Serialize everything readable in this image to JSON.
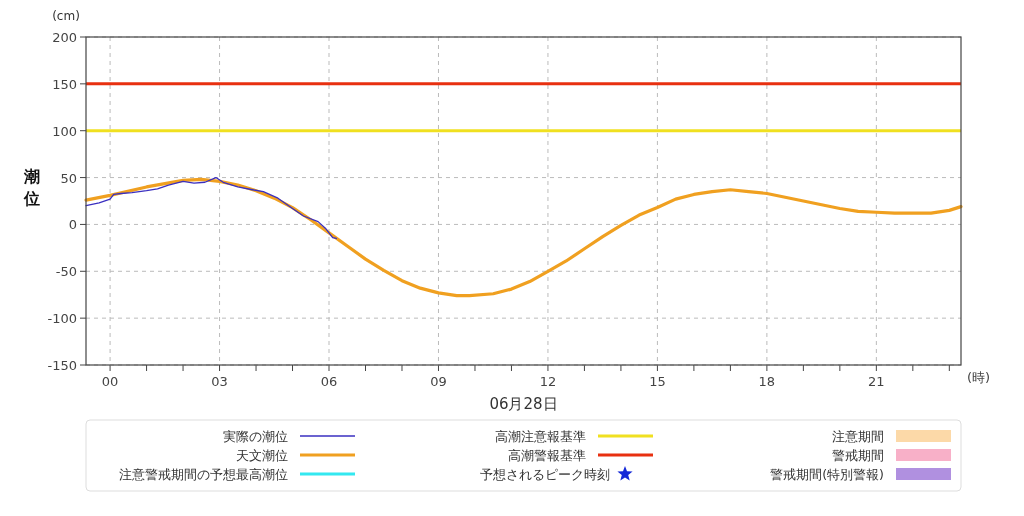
{
  "chart_data": {
    "type": "line",
    "ylabel": "潮位",
    "xlabel": "(時)",
    "annotations": [
      "(cm)",
      "06月28日"
    ],
    "xlim": [
      -0.66,
      23.32
    ],
    "ylim": [
      -150,
      200
    ],
    "xticks": [
      {
        "value": 0,
        "label": "00"
      },
      {
        "value": 1,
        "label": null
      },
      {
        "value": 2,
        "label": null
      },
      {
        "value": 3,
        "label": "03"
      },
      {
        "value": 4,
        "label": null
      },
      {
        "value": 5,
        "label": null
      },
      {
        "value": 6,
        "label": "06"
      },
      {
        "value": 7,
        "label": null
      },
      {
        "value": 8,
        "label": null
      },
      {
        "value": 9,
        "label": "09"
      },
      {
        "value": 10,
        "label": null
      },
      {
        "value": 11,
        "label": null
      },
      {
        "value": 12,
        "label": "12"
      },
      {
        "value": 13,
        "label": null
      },
      {
        "value": 14,
        "label": null
      },
      {
        "value": 15,
        "label": "15"
      },
      {
        "value": 16,
        "label": null
      },
      {
        "value": 17,
        "label": null
      },
      {
        "value": 18,
        "label": "18"
      },
      {
        "value": 19,
        "label": null
      },
      {
        "value": 20,
        "label": null
      },
      {
        "value": 21,
        "label": "21"
      },
      {
        "value": 22,
        "label": null
      },
      {
        "value": 23,
        "label": null
      }
    ],
    "yticks": [
      -150,
      -100,
      -50,
      0,
      50,
      100,
      150,
      200
    ],
    "grid": true,
    "legend": "bottom",
    "series": [
      {
        "name": "実際の潮位",
        "color": "#3a2fc0",
        "x": [
          -0.66,
          -0.3,
          0,
          0.1,
          0.3,
          0.6,
          1,
          1.3,
          1.6,
          2,
          2.3,
          2.6,
          2.9,
          3.1,
          3.5,
          3.9,
          4.2,
          4.6,
          5,
          5.3,
          5.7,
          5.9,
          6.1,
          6.2
        ],
        "values": [
          20,
          23,
          27,
          32,
          33,
          34,
          36,
          38,
          42,
          46,
          44,
          45,
          50,
          45,
          40,
          37,
          35,
          28,
          17,
          9,
          3,
          -4,
          -14,
          -15
        ]
      },
      {
        "name": "天文潮位",
        "color": "#f0a020",
        "x": [
          -0.66,
          0,
          1,
          2,
          2.5,
          3,
          3.5,
          4,
          4.5,
          5,
          5.5,
          6,
          6.5,
          7,
          7.5,
          8,
          8.5,
          9,
          9.5,
          9.85,
          10.5,
          11,
          11.5,
          12,
          12.5,
          13,
          13.5,
          14,
          14.5,
          15,
          15.5,
          16,
          16.5,
          17,
          17.5,
          18,
          18.5,
          19,
          19.5,
          20,
          20.5,
          21,
          21.5,
          22,
          22.5,
          23,
          23.32
        ],
        "values": [
          26,
          31,
          40,
          47,
          48,
          46,
          42,
          36,
          28,
          18,
          5,
          -9,
          -23,
          -37,
          -49,
          -60,
          -68,
          -73,
          -76,
          -76,
          -74,
          -69,
          -61,
          -50,
          -39,
          -26,
          -13,
          -1,
          10,
          18,
          27,
          32,
          35,
          37,
          35,
          33,
          29,
          25,
          21,
          17,
          14,
          13,
          12,
          12,
          12,
          15,
          19
        ]
      },
      {
        "name": "注意警戒期間の予想最高潮位",
        "color": "#33e8f0"
      },
      {
        "name": "予想されるピーク時刻",
        "type": "scatter",
        "marker": "star",
        "color": "#1428d8"
      },
      {
        "name": "注意期間",
        "type": "area",
        "color": "#fcd9a8"
      },
      {
        "name": "警戒期間",
        "type": "area",
        "color": "#f8b0c8"
      },
      {
        "name": "警戒期間(特別警報)",
        "type": "area",
        "color": "#b090e0"
      }
    ],
    "ref_lines": [
      {
        "axis": "y",
        "value": 100,
        "label": "高潮注意報基準",
        "color": "#f0e020"
      },
      {
        "axis": "y",
        "value": 150,
        "label": "高潮警報基準",
        "color": "#e83010"
      }
    ]
  }
}
